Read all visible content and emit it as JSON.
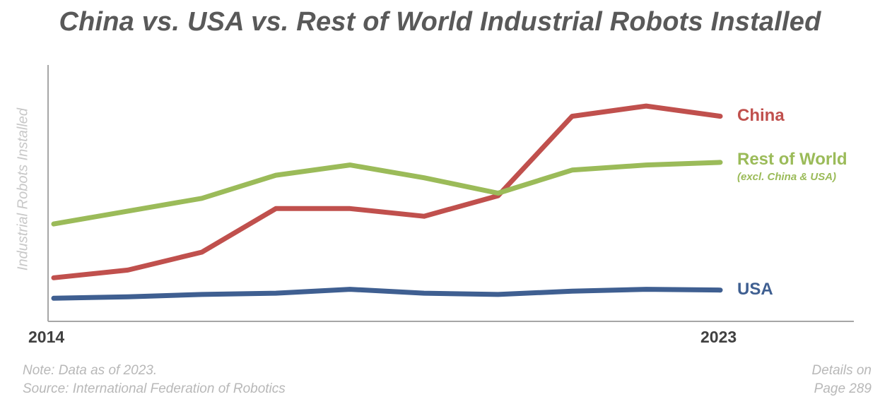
{
  "chart_data": {
    "type": "line",
    "title": "China vs. USA vs. Rest of World Industrial Robots Installed",
    "ylabel": "Industrial Robots Installed",
    "xlabel": "",
    "x": [
      2014,
      2015,
      2016,
      2017,
      2018,
      2019,
      2020,
      2021,
      2022,
      2023
    ],
    "x_tick_labels": [
      "2014",
      "2023"
    ],
    "ylim": [
      0,
      100
    ],
    "grid": false,
    "series": [
      {
        "name": "China",
        "color": "#c0504d",
        "values": [
          17,
          20,
          27,
          44,
          44,
          41,
          49,
          80,
          84,
          80
        ]
      },
      {
        "name": "Rest of World",
        "sublabel": "(excl. China & USA)",
        "color": "#9bbb59",
        "values": [
          38,
          43,
          48,
          57,
          61,
          56,
          50,
          59,
          61,
          62
        ]
      },
      {
        "name": "USA",
        "color": "#3f5f91",
        "values": [
          9,
          9.6,
          10.5,
          11,
          12.5,
          11,
          10.5,
          11.8,
          12.5,
          12.2
        ]
      }
    ]
  },
  "footer": {
    "note": "Note: Data as of 2023.",
    "source": "Source: International Federation of Robotics",
    "details_line1": "Details on",
    "details_line2": "Page 289"
  }
}
